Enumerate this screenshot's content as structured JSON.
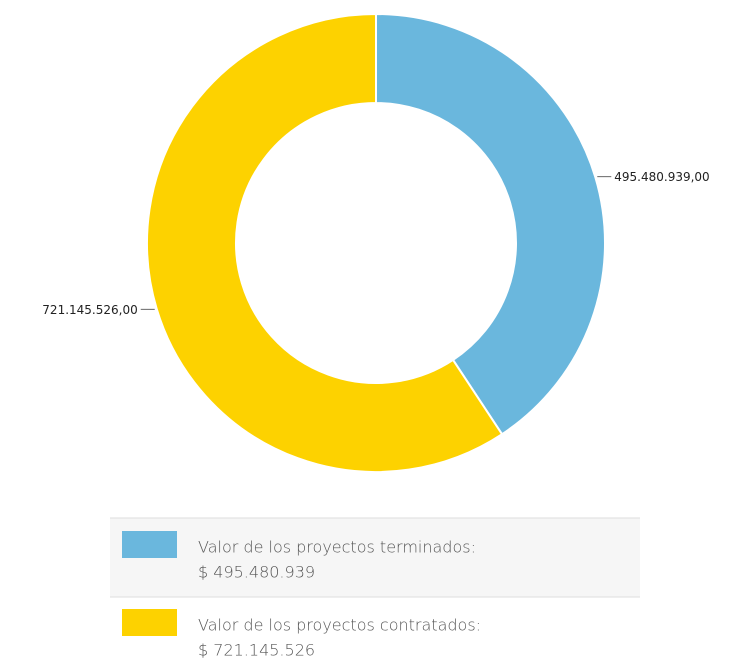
{
  "chart_data": {
    "type": "donut",
    "categories": [
      "Valor de los proyectos terminados:",
      "Valor de los proyectos contratados:"
    ],
    "values": [
      495480939,
      721145526
    ],
    "value_labels": [
      "495.480.939,00",
      "721.145.526,00"
    ],
    "legend_values": [
      "$ 495.480.939",
      "$ 721.145.526"
    ],
    "colors": [
      "#6ab7dd",
      "#fdd200"
    ]
  }
}
